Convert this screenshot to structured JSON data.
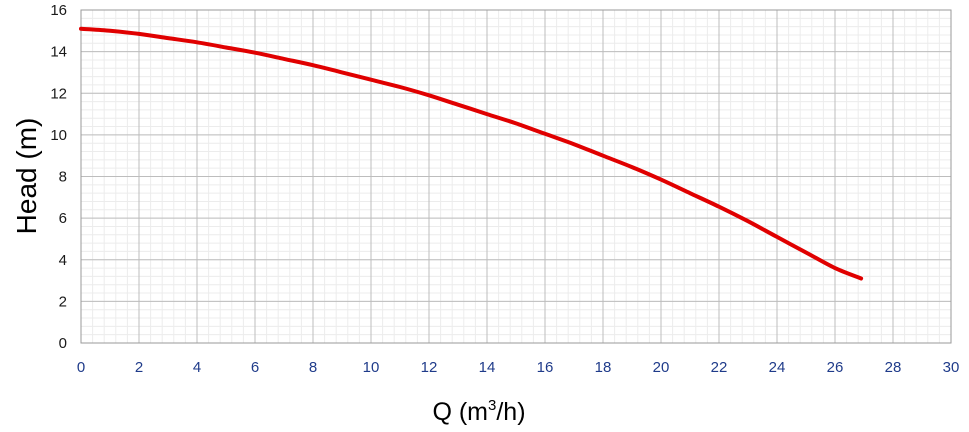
{
  "chart_data": {
    "type": "line",
    "title": "",
    "xlabel": "Q (m",
    "xlabel_sup": "3",
    "xlabel_end": "/h)",
    "ylabel": "Head (m)",
    "xlim": [
      0,
      30
    ],
    "ylim": [
      0,
      16
    ],
    "xticks": [
      "0",
      "2",
      "4",
      "6",
      "8",
      "10",
      "12",
      "14",
      "16",
      "18",
      "20",
      "22",
      "24",
      "26",
      "28",
      "30"
    ],
    "yticks": [
      "0",
      "2",
      "4",
      "6",
      "8",
      "10",
      "12",
      "14",
      "16"
    ],
    "grid": true,
    "minor_grid": true,
    "series": [
      {
        "color": "#e00000",
        "x": [
          0,
          1,
          2,
          3,
          4,
          5,
          6,
          7,
          8,
          9,
          10,
          11,
          12,
          13,
          14,
          15,
          16,
          17,
          18,
          19,
          20,
          21,
          22,
          23,
          24,
          25,
          26,
          26.9
        ],
        "y": [
          15.1,
          15.0,
          14.85,
          14.65,
          14.45,
          14.2,
          13.95,
          13.65,
          13.35,
          13.0,
          12.65,
          12.3,
          11.9,
          11.45,
          11.0,
          10.55,
          10.05,
          9.55,
          9.0,
          8.45,
          7.85,
          7.2,
          6.55,
          5.85,
          5.1,
          4.35,
          3.6,
          3.1
        ]
      }
    ]
  }
}
